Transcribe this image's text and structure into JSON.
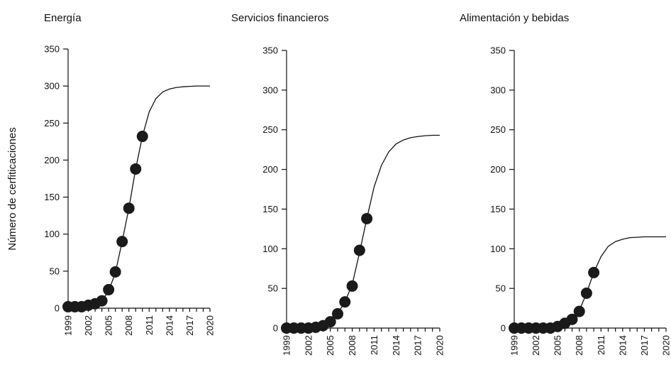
{
  "chart_data": [
    {
      "type": "line",
      "title": "Energía",
      "ylabel": "Número de cerfiticaciones",
      "ylim": [
        0,
        350
      ],
      "yticks": [
        0,
        50,
        100,
        150,
        200,
        250,
        300,
        350
      ],
      "xlim": [
        1999,
        2020
      ],
      "xticks": [
        1999,
        2002,
        2005,
        2008,
        2011,
        2014,
        2017,
        2020
      ],
      "series": [
        {
          "kind": "observed-points",
          "x": [
            1999,
            2000,
            2001,
            2002,
            2003,
            2004,
            2005,
            2006,
            2007,
            2008,
            2009,
            2010
          ],
          "y": [
            2,
            2,
            2,
            4,
            6,
            10,
            25,
            49,
            90,
            135,
            188,
            232
          ]
        },
        {
          "kind": "fitted-curve",
          "x": [
            1999,
            2001,
            2003,
            2004,
            2005,
            2006,
            2007,
            2008,
            2009,
            2010,
            2011,
            2012,
            2013,
            2014,
            2015,
            2016,
            2017,
            2018,
            2019,
            2020
          ],
          "y": [
            1,
            2,
            5,
            10,
            23,
            48,
            90,
            135,
            188,
            232,
            265,
            283,
            292,
            296,
            298,
            299,
            299.5,
            300,
            300,
            300
          ]
        }
      ]
    },
    {
      "type": "line",
      "title": "Servicios financieros",
      "ylim": [
        0,
        350
      ],
      "yticks": [
        0,
        50,
        100,
        150,
        200,
        250,
        300,
        350
      ],
      "xlim": [
        1999,
        2020
      ],
      "xticks": [
        1999,
        2002,
        2005,
        2008,
        2011,
        2014,
        2017,
        2020
      ],
      "series": [
        {
          "kind": "observed-points",
          "x": [
            1999,
            2000,
            2001,
            2002,
            2003,
            2004,
            2005,
            2006,
            2007,
            2008,
            2009,
            2010
          ],
          "y": [
            0,
            0,
            0,
            0,
            1,
            3,
            8,
            18,
            33,
            53,
            98,
            138
          ]
        },
        {
          "kind": "fitted-curve",
          "x": [
            1999,
            2001,
            2003,
            2004,
            2005,
            2006,
            2007,
            2008,
            2009,
            2010,
            2011,
            2012,
            2013,
            2014,
            2015,
            2016,
            2017,
            2018,
            2019,
            2020
          ],
          "y": [
            0,
            0,
            1,
            3,
            8,
            18,
            33,
            55,
            95,
            138,
            178,
            205,
            222,
            232,
            237,
            240,
            241.5,
            242.5,
            243,
            243
          ]
        }
      ]
    },
    {
      "type": "line",
      "title": "Alimentación y bebidas",
      "ylim": [
        0,
        350
      ],
      "yticks": [
        0,
        50,
        100,
        150,
        200,
        250,
        300,
        350
      ],
      "xlim": [
        1999,
        2020
      ],
      "xticks": [
        1999,
        2002,
        2005,
        2008,
        2011,
        2014,
        2017,
        2020
      ],
      "series": [
        {
          "kind": "observed-points",
          "x": [
            1999,
            2000,
            2001,
            2002,
            2003,
            2004,
            2005,
            2006,
            2007,
            2008,
            2009,
            2010
          ],
          "y": [
            0,
            0,
            0,
            0,
            0,
            0,
            2,
            6,
            11,
            21,
            44,
            70
          ]
        },
        {
          "kind": "fitted-curve",
          "x": [
            1999,
            2001,
            2003,
            2004,
            2005,
            2006,
            2007,
            2008,
            2009,
            2010,
            2011,
            2012,
            2013,
            2014,
            2015,
            2016,
            2017,
            2018,
            2019,
            2020
          ],
          "y": [
            0,
            0,
            0,
            1,
            2,
            6,
            11,
            22,
            44,
            70,
            90,
            103,
            109,
            112,
            114,
            114.5,
            115,
            115,
            115,
            115
          ]
        }
      ]
    }
  ]
}
